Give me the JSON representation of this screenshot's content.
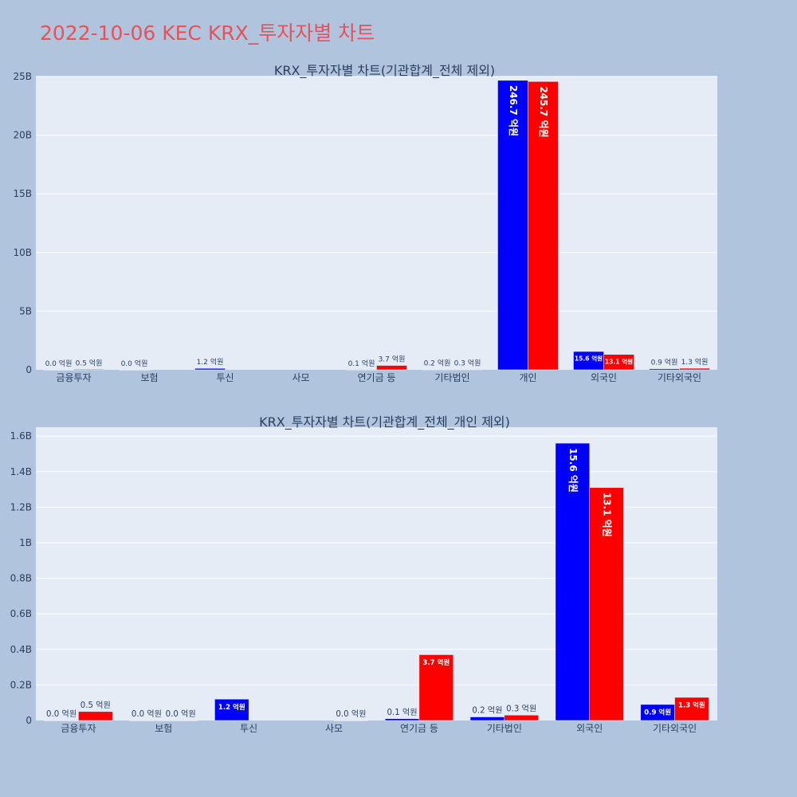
{
  "page": {
    "title": "2022-10-06 KEC KRX_투자자별 차트"
  },
  "colors": {
    "buy": "#0000ff",
    "sell": "#ff0000",
    "title": "#e8505b",
    "background": "#b0c4de",
    "plot": "#e5ecf6"
  },
  "chart_data": [
    {
      "type": "bar",
      "title": "KRX_투자자별 차트(기관합계_전체 제외)",
      "categories": [
        "금융투자",
        "보험",
        "투신",
        "사모",
        "연기금 등",
        "기타법인",
        "개인",
        "외국인",
        "기타외국인"
      ],
      "ylim": [
        0,
        25000000000
      ],
      "yticks": [
        0,
        5000000000,
        10000000000,
        15000000000,
        20000000000,
        25000000000
      ],
      "ytick_labels": [
        "0",
        "5B",
        "10B",
        "15B",
        "20B",
        "25B"
      ],
      "grid": true,
      "series": [
        {
          "values": [
            0,
            0,
            120000000,
            null,
            10000000,
            20000000,
            24670000000,
            1560000000,
            90000000
          ],
          "labels": [
            "0.0 억원",
            "0.0 억원",
            "1.2 억원",
            "",
            "0.1 억원",
            "0.2 억원",
            "246.7 억원",
            "15.6 억원",
            "0.9 억원"
          ]
        },
        {
          "values": [
            50000000,
            null,
            null,
            null,
            370000000,
            30000000,
            24570000000,
            1310000000,
            130000000
          ],
          "labels": [
            "0.5 억원",
            "",
            "",
            "",
            "3.7 억원",
            "0.3 억원",
            "245.7 억원",
            "13.1 억원",
            "1.3 억원"
          ]
        }
      ]
    },
    {
      "type": "bar",
      "title": "KRX_투자자별 차트(기관합계_전체_개인 제외)",
      "categories": [
        "금융투자",
        "보험",
        "투신",
        "사모",
        "연기금 등",
        "기타법인",
        "외국인",
        "기타외국인"
      ],
      "ylim": [
        0,
        1650000000
      ],
      "yticks": [
        0,
        200000000,
        400000000,
        600000000,
        800000000,
        1000000000,
        1200000000,
        1400000000,
        1600000000
      ],
      "ytick_labels": [
        "0",
        "0.2B",
        "0.4B",
        "0.6B",
        "0.8B",
        "1B",
        "1.2B",
        "1.4B",
        "1.6B"
      ],
      "grid": true,
      "series": [
        {
          "values": [
            0,
            0,
            120000000,
            null,
            10000000,
            20000000,
            1560000000,
            90000000
          ],
          "labels": [
            "0.0 억원",
            "0.0 억원",
            "1.2 억원",
            "",
            "0.1 억원",
            "0.2 억원",
            "15.6 억원",
            "0.9 억원"
          ]
        },
        {
          "values": [
            50000000,
            0,
            null,
            0,
            370000000,
            30000000,
            1310000000,
            130000000
          ],
          "labels": [
            "0.5 억원",
            "0.0 억원",
            "",
            "0.0 억원",
            "3.7 억원",
            "0.3 억원",
            "13.1 억원",
            "1.3 억원"
          ]
        }
      ]
    }
  ]
}
